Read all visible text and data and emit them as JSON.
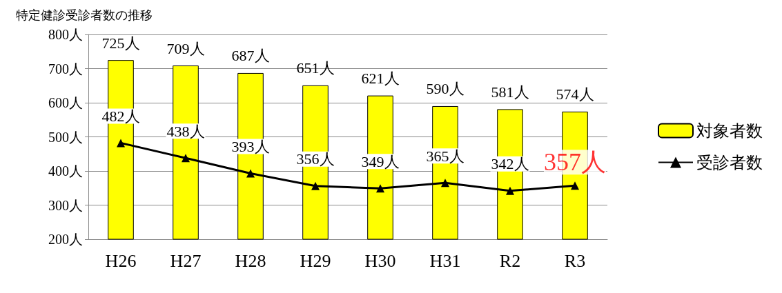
{
  "chart_data": {
    "type": "bar",
    "title": "特定健診受診者数の推移",
    "categories": [
      "H26",
      "H27",
      "H28",
      "H29",
      "H30",
      "H31",
      "R2",
      "R3"
    ],
    "series": [
      {
        "name": "対象者数",
        "color": "#ffff00",
        "values": [
          725,
          709,
          687,
          651,
          621,
          590,
          581,
          574
        ],
        "value_labels": [
          "725人",
          "709人",
          "687人",
          "651人",
          "621人",
          "590人",
          "581人",
          "574人"
        ]
      },
      {
        "name": "受診者数",
        "type": "line",
        "color": "#000000",
        "marker": "triangle",
        "values": [
          482,
          438,
          393,
          356,
          349,
          365,
          342,
          357
        ],
        "value_labels": [
          "482人",
          "438人",
          "393人",
          "356人",
          "349人",
          "365人",
          "342人",
          null
        ]
      }
    ],
    "annotations": [
      {
        "text": "357人",
        "x": "R3",
        "y": 357
      }
    ],
    "ylim": [
      200,
      800
    ],
    "yticks": [
      {
        "value": 200,
        "label": "200人"
      },
      {
        "value": 300,
        "label": "300人"
      },
      {
        "value": 400,
        "label": "400人"
      },
      {
        "value": 500,
        "label": "500人"
      },
      {
        "value": 600,
        "label": "600人"
      },
      {
        "value": 700,
        "label": "700人"
      },
      {
        "value": 800,
        "label": "800人"
      }
    ],
    "grid": "y",
    "legend": "right"
  }
}
